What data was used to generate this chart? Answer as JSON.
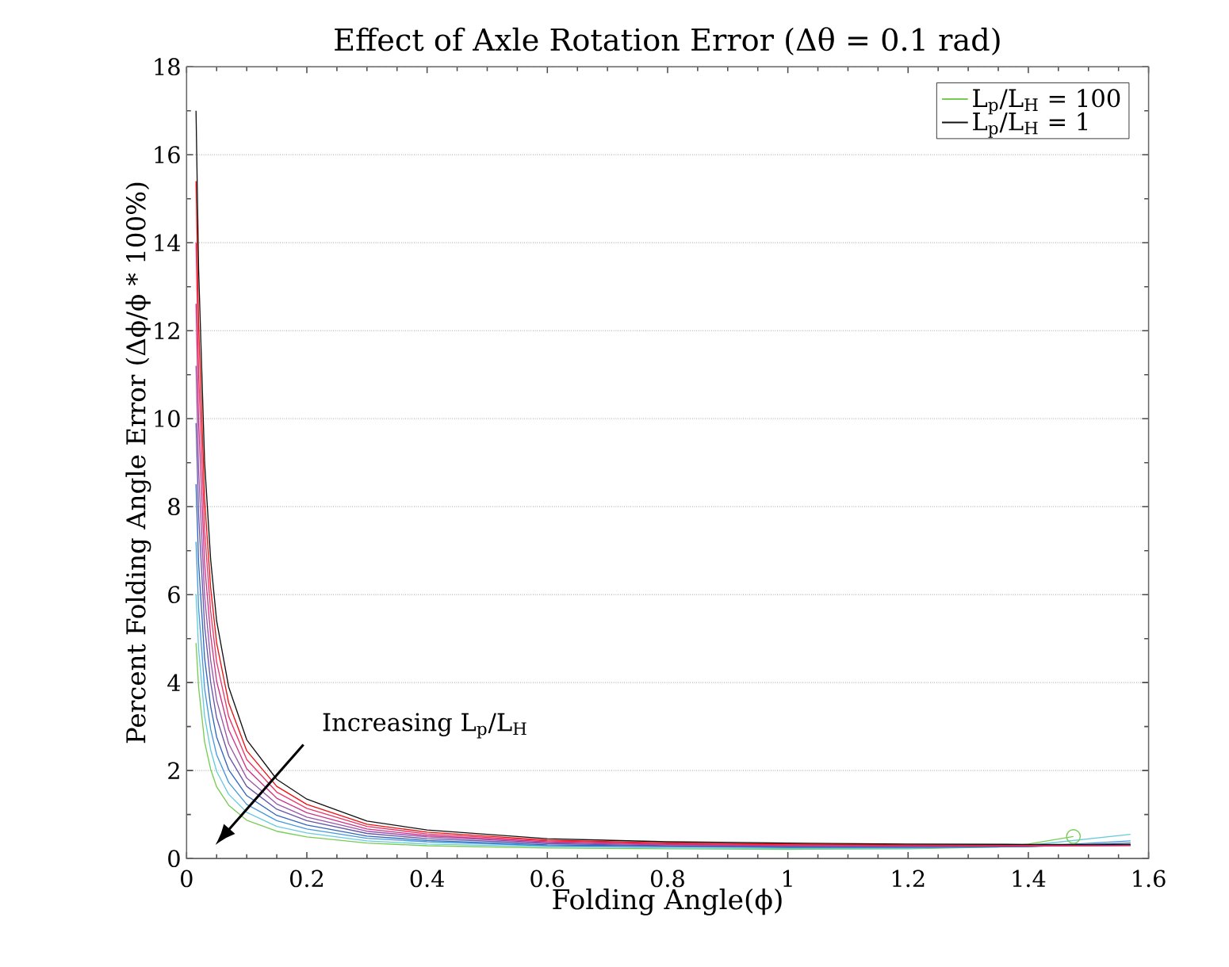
{
  "chart_data": {
    "type": "line",
    "title": "Effect of Axle Rotation Error (Δθ = 0.1 rad)",
    "xlabel": "Folding Angle(ϕ)",
    "ylabel": "Percent Folding Angle Error (Δϕ/ϕ * 100%)",
    "x": [
      0.0157,
      0.02,
      0.03,
      0.04,
      0.05,
      0.07,
      0.1,
      0.15,
      0.2,
      0.3,
      0.4,
      0.6,
      0.8,
      1.0,
      1.2,
      1.4,
      1.57
    ],
    "series": [
      {
        "name": "L$_{p}$/L$_{H}$ = 100",
        "color": "#77cc55",
        "x": [
          0.0157,
          0.02,
          0.03,
          0.04,
          0.05,
          0.07,
          0.1,
          0.15,
          0.2,
          0.3,
          0.4,
          0.6,
          0.8,
          1.0,
          1.2,
          1.35,
          1.4,
          1.475
        ],
        "values": [
          4.9,
          3.89,
          2.65,
          2.03,
          1.63,
          1.21,
          0.87,
          0.62,
          0.49,
          0.35,
          0.29,
          0.24,
          0.22,
          0.21,
          0.22,
          0.26,
          0.33,
          0.5
        ]
      },
      {
        "type": "scatter",
        "marker": "circle",
        "color": "#77cc55",
        "x": [
          1.475
        ],
        "values": [
          0.5
        ]
      },
      {
        "color": "#66ccdd",
        "values": [
          6.01,
          4.76,
          3.23,
          2.47,
          1.98,
          1.46,
          1.05,
          0.73,
          0.58,
          0.4,
          0.33,
          0.27,
          0.24,
          0.23,
          0.23,
          0.3,
          0.55
        ]
      },
      {
        "color": "#4499dd",
        "values": [
          7.2,
          5.69,
          3.86,
          2.94,
          2.36,
          1.73,
          1.23,
          0.86,
          0.67,
          0.46,
          0.38,
          0.29,
          0.27,
          0.25,
          0.25,
          0.27,
          0.4
        ]
      },
      {
        "color": "#3366bb",
        "values": [
          8.51,
          6.72,
          4.55,
          3.46,
          2.76,
          2.02,
          1.43,
          0.98,
          0.76,
          0.51,
          0.41,
          0.31,
          0.28,
          0.26,
          0.26,
          0.27,
          0.35
        ]
      },
      {
        "color": "#6655aa",
        "values": [
          9.9,
          7.82,
          5.28,
          4.01,
          3.2,
          2.33,
          1.64,
          1.12,
          0.86,
          0.57,
          0.45,
          0.34,
          0.29,
          0.28,
          0.27,
          0.28,
          0.3
        ]
      },
      {
        "color": "#9955aa",
        "values": [
          11.2,
          8.84,
          5.96,
          4.51,
          3.6,
          2.61,
          1.83,
          1.24,
          0.94,
          0.62,
          0.49,
          0.36,
          0.31,
          0.29,
          0.28,
          0.29,
          0.3
        ]
      },
      {
        "color": "#cc3388",
        "values": [
          12.61,
          9.95,
          6.69,
          5.07,
          4.03,
          2.93,
          2.04,
          1.37,
          1.04,
          0.67,
          0.52,
          0.38,
          0.32,
          0.3,
          0.29,
          0.29,
          0.3
        ]
      },
      {
        "color": "#ee3366",
        "values": [
          14.0,
          11.04,
          7.43,
          5.62,
          4.47,
          3.23,
          2.25,
          1.51,
          1.14,
          0.73,
          0.56,
          0.4,
          0.34,
          0.31,
          0.3,
          0.3,
          0.31
        ]
      },
      {
        "color": "#ee1111",
        "values": [
          15.4,
          12.14,
          8.16,
          6.16,
          4.9,
          3.54,
          2.45,
          1.64,
          1.23,
          0.78,
          0.6,
          0.42,
          0.35,
          0.33,
          0.31,
          0.31,
          0.31
        ]
      },
      {
        "name": "L$_{p}$/L$_{H}$ = 1",
        "color": "#111111",
        "values": [
          17.0,
          13.4,
          9.0,
          6.8,
          5.4,
          3.9,
          2.7,
          1.8,
          1.35,
          0.85,
          0.65,
          0.45,
          0.38,
          0.35,
          0.33,
          0.32,
          0.32
        ]
      }
    ],
    "xlim": [
      0,
      1.6
    ],
    "xticks": [
      0,
      0.2,
      0.4,
      0.6,
      0.8,
      1,
      1.2,
      1.4,
      1.6
    ],
    "ylim": [
      0,
      18
    ],
    "yticks": [
      0,
      2,
      4,
      6,
      8,
      10,
      12,
      14,
      16,
      18
    ],
    "grid": "y",
    "legend": "top right",
    "marker": "none",
    "line_style": "solid",
    "annotations": [
      "Increasing L$_{p}$/L$_{H}$"
    ]
  }
}
